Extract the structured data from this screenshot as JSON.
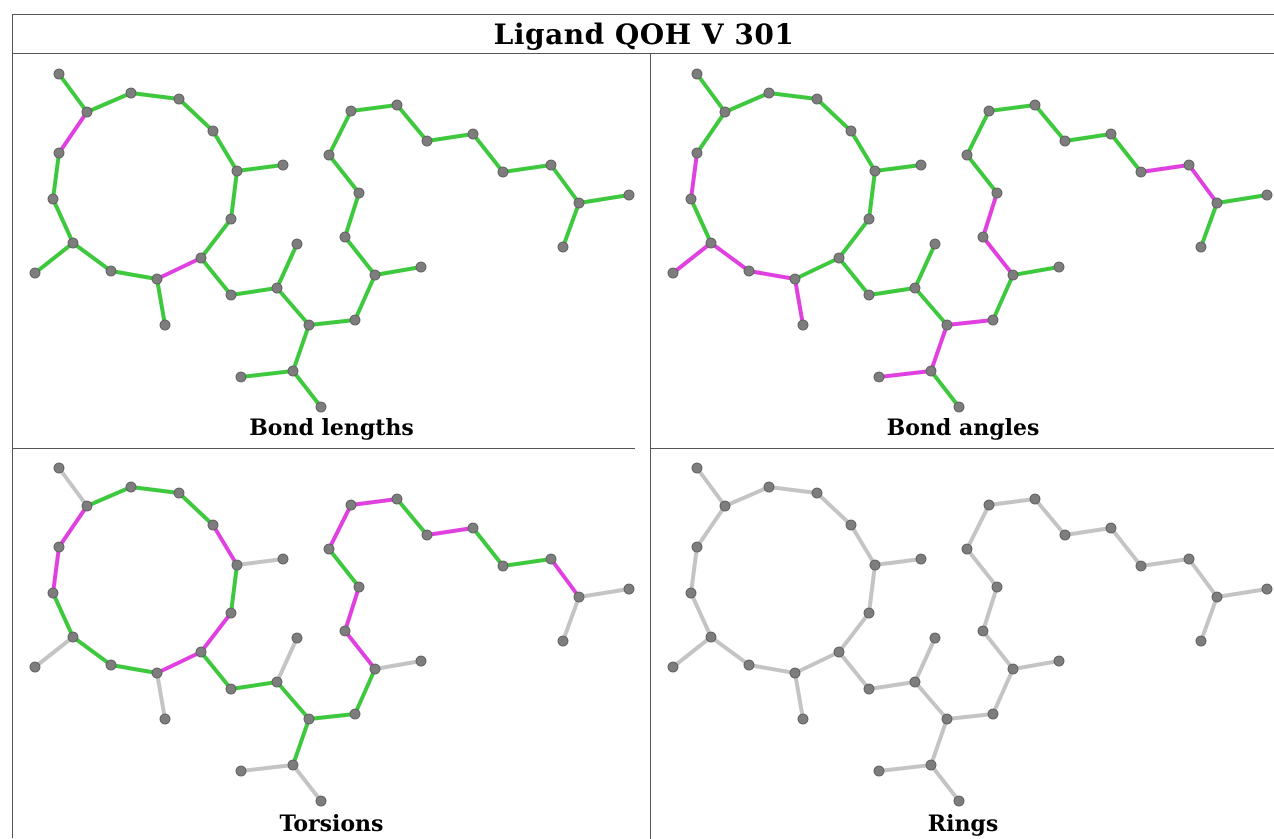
{
  "title": "Ligand QOH V 301",
  "panels": [
    {
      "id": "bond-lengths",
      "caption": "Bond lengths",
      "magenta": [
        [
          5,
          6
        ],
        [
          9,
          10
        ]
      ],
      "mode": "color"
    },
    {
      "id": "bond-angles",
      "caption": "Bond angles",
      "magenta": [
        [
          5,
          6
        ],
        [
          6,
          7
        ],
        [
          7,
          8
        ],
        [
          8,
          10
        ],
        [
          10,
          11
        ],
        [
          11,
          12
        ],
        [
          33,
          36
        ],
        [
          34,
          35
        ],
        [
          35,
          36
        ],
        [
          25,
          26
        ],
        [
          26,
          27
        ],
        [
          30,
          31
        ]
      ],
      "mode": "color"
    },
    {
      "id": "torsions",
      "caption": "Torsions",
      "magenta": [
        [
          6,
          7
        ],
        [
          2,
          3
        ],
        [
          11,
          12
        ],
        [
          34,
          35
        ],
        [
          28,
          29
        ],
        [
          29,
          30
        ],
        [
          30,
          31
        ],
        [
          40,
          41
        ],
        [
          43,
          44
        ],
        [
          45,
          46
        ]
      ],
      "mode": "torsion"
    },
    {
      "id": "rings",
      "caption": "Rings",
      "magenta": [],
      "mode": "gray"
    }
  ],
  "colors": {
    "green": "#3ec83e",
    "magenta": "#e040e0",
    "gray": "#c4c4c4",
    "atom": "#7d7d7d"
  }
}
